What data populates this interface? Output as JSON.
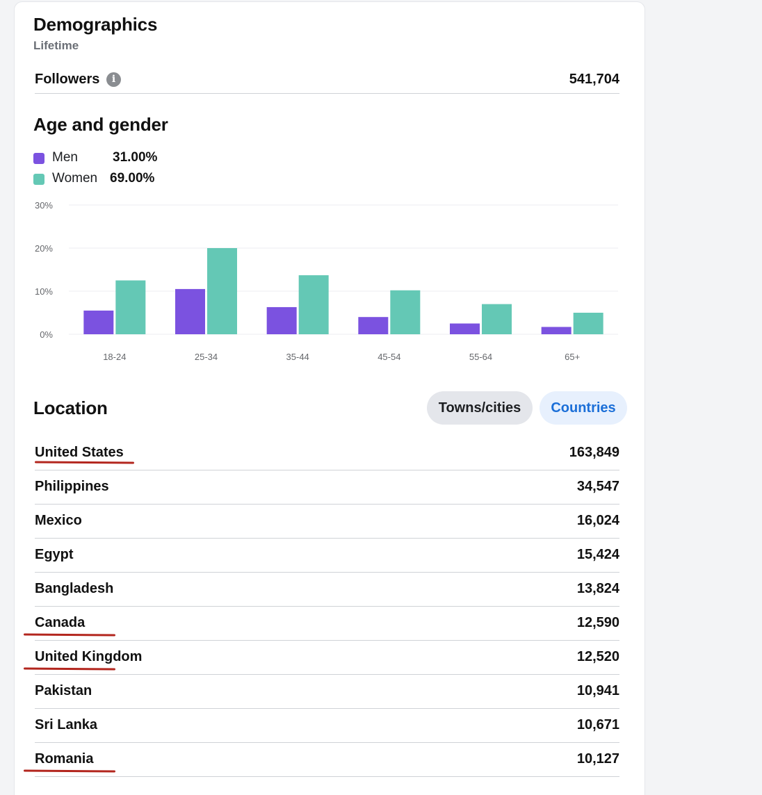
{
  "header": {
    "title": "Demographics",
    "subtitle": "Lifetime"
  },
  "followers": {
    "label": "Followers",
    "info_icon": "info-icon",
    "value": "541,704"
  },
  "age_gender": {
    "title": "Age and gender",
    "legend": [
      {
        "name": "Men",
        "pct": "31.00%",
        "color": "#7b52e0"
      },
      {
        "name": "Women",
        "pct": "69.00%",
        "color": "#64c8b5"
      }
    ]
  },
  "chart_data": {
    "type": "bar",
    "categories": [
      "18-24",
      "25-34",
      "35-44",
      "45-54",
      "55-64",
      "65+"
    ],
    "series": [
      {
        "name": "Men",
        "values": [
          5.5,
          10.5,
          6.3,
          4.0,
          2.5,
          1.7
        ],
        "color": "#7b52e0"
      },
      {
        "name": "Women",
        "values": [
          12.5,
          20.0,
          13.7,
          10.2,
          7.0,
          5.0
        ],
        "color": "#64c8b5"
      }
    ],
    "yticks": [
      "0%",
      "10%",
      "20%",
      "30%"
    ],
    "ylim": [
      0,
      30
    ],
    "grid": true,
    "title": "",
    "xlabel": "",
    "ylabel": ""
  },
  "location": {
    "title": "Location",
    "tabs": [
      {
        "label": "Towns/cities",
        "selected": false
      },
      {
        "label": "Countries",
        "selected": true
      }
    ],
    "rows": [
      {
        "name": "United States",
        "value": "163,849"
      },
      {
        "name": "Philippines",
        "value": "34,547"
      },
      {
        "name": "Mexico",
        "value": "16,024"
      },
      {
        "name": "Egypt",
        "value": "15,424"
      },
      {
        "name": "Bangladesh",
        "value": "13,824"
      },
      {
        "name": "Canada",
        "value": "12,590"
      },
      {
        "name": "United Kingdom",
        "value": "12,520"
      },
      {
        "name": "Pakistan",
        "value": "10,941"
      },
      {
        "name": "Sri Lanka",
        "value": "10,671"
      },
      {
        "name": "Romania",
        "value": "10,127"
      }
    ],
    "underlined": [
      "United States",
      "Canada",
      "United Kingdom",
      "Romania"
    ]
  }
}
